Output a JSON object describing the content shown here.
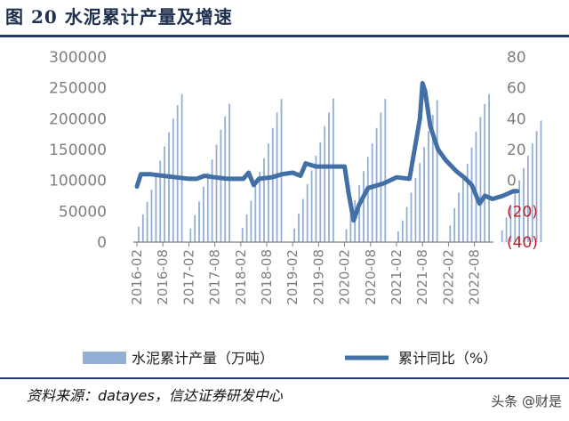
{
  "figure": {
    "title": "图  20  水泥累计产量及增速",
    "source": "资料来源：datayes，信达证券研发中心",
    "watermark": "头条 @财是"
  },
  "colors": {
    "bar": "#94afd6",
    "line": "#416fa6",
    "negative_tick": "#c0202a",
    "tick": "#7f7f7f",
    "rule": "#25386b"
  },
  "chart_data": {
    "type": "bar+line",
    "x_labels": [
      "2016-02",
      "2016-08",
      "2017-02",
      "2017-08",
      "2018-02",
      "2018-08",
      "2019-02",
      "2019-08",
      "2020-02",
      "2020-08",
      "2021-02",
      "2021-08",
      "2022-02",
      "2022-08"
    ],
    "left_axis": {
      "ticks": [
        "300000",
        "250000",
        "200000",
        "150000",
        "100000",
        "50000",
        "0"
      ],
      "min": 0,
      "max": 300000
    },
    "right_axis": {
      "ticks": [
        "80",
        "60",
        "40",
        "20",
        "0",
        "(20)",
        "(40)"
      ],
      "min": -40,
      "max": 80
    },
    "series": [
      {
        "name": "水泥累计产量（万吨）",
        "kind": "bar",
        "axis": "left",
        "values": [
          [
            25000,
            45000,
            65000,
            85000,
            108000,
            132000,
            155000,
            178000,
            200000,
            222000,
            240000
          ],
          [
            22000,
            44000,
            66000,
            90000,
            112000,
            134000,
            158000,
            182000,
            204000,
            224000
          ],
          [
            23000,
            45000,
            67000,
            91000,
            114000,
            136000,
            160000,
            185000,
            210000,
            232000
          ],
          [
            22000,
            46000,
            70000,
            94000,
            116000,
            140000,
            162000,
            188000,
            210000,
            233000
          ],
          [
            21000,
            45000,
            68000,
            92000,
            115000,
            138000,
            160000,
            185000,
            210000,
            232000
          ],
          [
            17000,
            35000,
            57000,
            80000,
            104000,
            128000,
            154000,
            180000,
            206000,
            230000
          ],
          [
            27000,
            55000,
            80000,
            104000,
            127000,
            153000,
            179000,
            203000,
            224000,
            240000
          ],
          [
            19000,
            40000,
            60000,
            80000,
            100000,
            120000,
            140000,
            160000,
            180000,
            197000
          ]
        ]
      },
      {
        "name": "累计同比（%）",
        "kind": "line",
        "axis": "right",
        "points": [
          [
            0,
            -4
          ],
          [
            0.15,
            4
          ],
          [
            0.5,
            4
          ],
          [
            1.0,
            3
          ],
          [
            1.5,
            2
          ],
          [
            2.0,
            1
          ],
          [
            2.3,
            1
          ],
          [
            2.6,
            3
          ],
          [
            3.0,
            2
          ],
          [
            3.5,
            1
          ],
          [
            4.1,
            1
          ],
          [
            4.3,
            5
          ],
          [
            4.5,
            -3
          ],
          [
            4.7,
            1
          ],
          [
            5.2,
            2
          ],
          [
            5.6,
            4
          ],
          [
            6.0,
            5
          ],
          [
            6.3,
            3
          ],
          [
            6.5,
            11
          ],
          [
            6.9,
            9
          ],
          [
            7.4,
            9
          ],
          [
            8.0,
            9
          ],
          [
            8.15,
            -8
          ],
          [
            8.35,
            -26
          ],
          [
            8.55,
            -16
          ],
          [
            8.9,
            -5
          ],
          [
            9.5,
            -2
          ],
          [
            10.0,
            2
          ],
          [
            10.5,
            1
          ],
          [
            10.9,
            40
          ],
          [
            11.0,
            63
          ],
          [
            11.1,
            58
          ],
          [
            11.3,
            35
          ],
          [
            11.6,
            20
          ],
          [
            11.9,
            13
          ],
          [
            12.3,
            6
          ],
          [
            12.6,
            2
          ],
          [
            12.9,
            -3
          ],
          [
            13.2,
            -15
          ],
          [
            13.4,
            -10
          ],
          [
            13.7,
            -12
          ],
          [
            14.1,
            -10
          ],
          [
            14.5,
            -7
          ],
          [
            14.65,
            -7
          ]
        ]
      }
    ],
    "legend": {
      "position": "bottom",
      "items": [
        {
          "label": "水泥累计产量（万吨）",
          "symbol": "bar"
        },
        {
          "label": "累计同比（%）",
          "symbol": "line"
        }
      ]
    }
  }
}
